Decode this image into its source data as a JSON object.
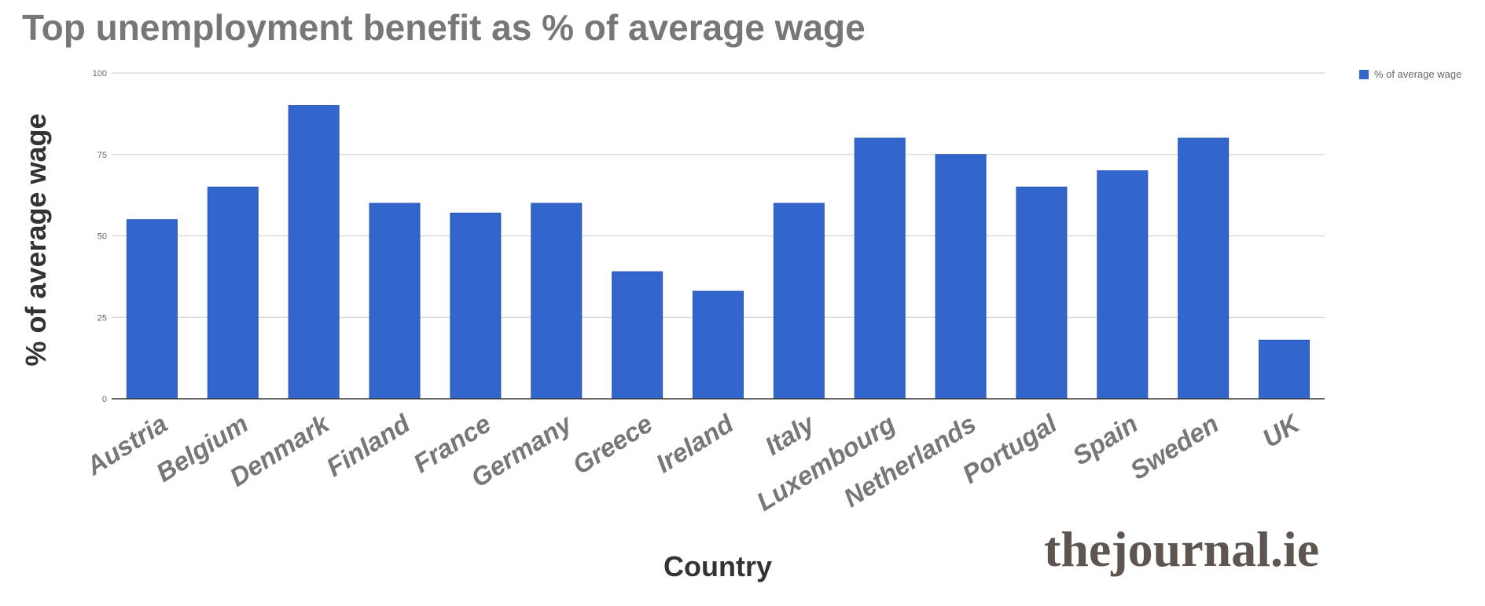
{
  "chart_data": {
    "type": "bar",
    "title": "Top unemployment benefit as % of average wage",
    "xlabel": "Country",
    "ylabel": "% of average wage",
    "ylim": [
      0,
      100
    ],
    "yticks": [
      0,
      25,
      50,
      75,
      100
    ],
    "grid": true,
    "legend_position": "top-right",
    "categories": [
      "Austria",
      "Belgium",
      "Denmark",
      "Finland",
      "France",
      "Germany",
      "Greece",
      "Ireland",
      "Italy",
      "Luxembourg",
      "Netherlands",
      "Portugal",
      "Spain",
      "Sweden",
      "UK"
    ],
    "series": [
      {
        "name": "% of average wage",
        "color": "#3366cc",
        "values": [
          55,
          65,
          90,
          60,
          57,
          60,
          39,
          33,
          60,
          80,
          75,
          65,
          70,
          80,
          18
        ]
      }
    ]
  },
  "watermark": {
    "text": "thejournal.ie",
    "color": "#5e5550"
  }
}
